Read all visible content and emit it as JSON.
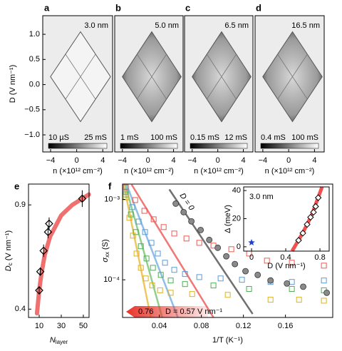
{
  "chart_data": [
    {
      "type": "heatmap",
      "panel_label": "a",
      "annotation": "3.0 nm",
      "xlabel": "n (×10¹² cm⁻²)",
      "ylabel": "D (V nm⁻¹)",
      "xlim": [
        -5.2,
        5.5
      ],
      "xticks": [
        {
          "value": -4,
          "label": "−4"
        },
        0,
        4
      ],
      "ylim": [
        -1.34,
        1.37
      ],
      "yticks": [
        {
          "value": 1,
          "label": "1.0"
        },
        0.5,
        {
          "value": 0,
          "label": "0.0"
        },
        {
          "value": -0.5,
          "label": "−0.5"
        },
        {
          "value": -1,
          "label": "−1.0"
        }
      ],
      "colorbar": [
        "10 µS",
        "25 mS"
      ]
    },
    {
      "type": "heatmap",
      "panel_label": "b",
      "annotation": "5.0 nm",
      "xlabel": "n (×10¹² cm⁻²)",
      "xlim": [
        -5.2,
        5.5
      ],
      "xticks": [
        {
          "value": -4,
          "label": "−4"
        },
        0,
        4
      ],
      "colorbar": [
        "1 mS",
        "100 mS"
      ]
    },
    {
      "type": "heatmap",
      "panel_label": "c",
      "annotation": "6.5 nm",
      "xlabel": "n (×10¹² cm⁻²)",
      "xlim": [
        -5.2,
        5.5
      ],
      "xticks": [
        {
          "value": -4,
          "label": "−4"
        },
        0,
        4
      ],
      "colorbar": [
        "0.15 mS",
        "12 mS"
      ]
    },
    {
      "type": "heatmap",
      "panel_label": "d",
      "annotation": "16.5 nm",
      "xlabel": "n (×10¹² cm⁻²)",
      "xlim": [
        -5.2,
        5.5
      ],
      "xticks": [
        {
          "value": -4,
          "label": "−4"
        },
        0,
        4
      ],
      "colorbar": [
        "0.4 mS",
        "100 mS"
      ]
    },
    {
      "type": "errorscatter",
      "panel_label": "e",
      "xlabel": "N",
      "xlabel_sub": "layer",
      "ylabel": "D",
      "ylabel_sub": "c",
      "ylabel_unit": "(V nm⁻¹)",
      "xlim": [
        0.3,
        55.2
      ],
      "xticks": [
        10,
        30,
        50
      ],
      "ylim": [
        0.36,
        1.0
      ],
      "yticks": [
        0.4,
        0.9
      ],
      "points": {
        "x": [
          10,
          11,
          14,
          18,
          19,
          49
        ],
        "y": [
          0.49,
          0.58,
          0.68,
          0.77,
          0.81,
          0.93
        ],
        "yerr": [
          0.02,
          0.02,
          0.03,
          0.03,
          0.03,
          0.04
        ],
        "color": "#000000"
      },
      "fit": {
        "x": [
          8,
          10,
          12,
          15,
          20,
          30,
          40,
          55
        ],
        "y": [
          0.38,
          0.49,
          0.57,
          0.66,
          0.75,
          0.85,
          0.9,
          0.95
        ],
        "color": "#f07070"
      }
    },
    {
      "type": "logscatter",
      "panel_label": "f",
      "xlabel": "1/T (K⁻¹)",
      "ylabel": "σ",
      "ylabel_sub": "xx",
      "ylabel_unit": "(S)",
      "xlim": [
        0.005,
        0.205
      ],
      "xticks": [
        0.04,
        0.08,
        0.12,
        0.16
      ],
      "ylim": [
        3.4e-05,
        0.00155
      ],
      "ylog": true,
      "yticks": [
        {
          "value": 0.001,
          "label": "10⁻³"
        },
        {
          "value": 0.0001,
          "label": "10⁻⁴"
        }
      ],
      "series": [
        {
          "marker": "square",
          "color": "#e85a50",
          "x": [
            0.0081,
            0.017,
            0.0258,
            0.0346,
            0.0441,
            0.0542,
            0.0658,
            0.078,
            0.0915,
            0.1085,
            0.1254,
            0.1424,
            0.1661,
            0.1966
          ],
          "values": [
            0.00141,
            0.00098,
            0.00072,
            0.000565,
            0.000452,
            0.000376,
            0.000326,
            0.000288,
            0.000266,
            0.00024,
            0.000212,
            0.000173,
            0.000163,
            0.00015
          ]
        },
        {
          "marker": "square",
          "color": "#5b9bd5",
          "x": [
            0.0081,
            0.0142,
            0.0203,
            0.0264,
            0.0325,
            0.0386,
            0.0454,
            0.0542,
            0.0644,
            0.078,
            0.0983,
            0.1186,
            0.1458,
            0.1661,
            0.1966
          ],
          "values": [
            0.00125,
            0.0008,
            0.00053,
            0.000392,
            0.000288,
            0.000212,
            0.000163,
            0.000133,
            0.000118,
            0.000108,
            0.000104,
            0.0001,
            9.4e-05,
            9.4e-05,
            9.8e-05
          ]
        },
        {
          "marker": "square",
          "color": "#4caf50",
          "x": [
            0.0081,
            0.0129,
            0.0176,
            0.0224,
            0.0278,
            0.0339,
            0.0414,
            0.0508,
            0.0644,
            0.0915,
            0.1254,
            0.1661,
            0.1966
          ],
          "values": [
            0.00115,
            0.00065,
            0.000392,
            0.000261,
            0.000184,
            0.000141,
            0.000115,
            9.8e-05,
            8.85e-05,
            8.5e-05,
            7.7e-05,
            7.7e-05,
            7.4e-05
          ]
        },
        {
          "marker": "square",
          "color": "#e0b020",
          "x": [
            0.0081,
            0.0115,
            0.0149,
            0.0183,
            0.0224,
            0.0271,
            0.0332,
            0.0407,
            0.0508,
            0.0712,
            0.1051,
            0.1458,
            0.1729,
            0.1966
          ],
          "values": [
            0.00106,
            0.00059,
            0.000354,
            0.000212,
            0.000141,
            0.000104,
            8.5e-05,
            7.4e-05,
            6.9e-05,
            6.65e-05,
            6.5e-05,
            5.65e-05,
            5.65e-05,
            5.5e-05
          ]
        },
        {
          "marker": "filled",
          "color": "#8a8a8a",
          "x": [
            0.0556,
            0.0631,
            0.0705,
            0.0793,
            0.0875,
            0.0956,
            0.1037,
            0.1119,
            0.122,
            0.1336,
            0.1458,
            0.1614,
            0.1769,
            0.1993
          ],
          "values": [
            0.000885,
            0.000693,
            0.000533,
            0.000416,
            0.000313,
            0.00025,
            0.000196,
            0.000157,
            0.000128,
            0.000115,
            9.8e-05,
            9e-05,
            8.2e-05,
            6.9e-05
          ]
        }
      ],
      "fits": [
        {
          "color": "#f07878",
          "x": [
            0.0136,
            0.0915
          ],
          "values": [
            0.00153,
            3.4e-05
          ]
        },
        {
          "color": "#8fbfe8",
          "x": [
            0.0088,
            0.0576
          ],
          "values": [
            0.00153,
            3.4e-05
          ]
        },
        {
          "color": "#8fd08f",
          "x": [
            0.0075,
            0.0427
          ],
          "values": [
            0.00153,
            3.4e-05
          ]
        },
        {
          "color": "#ecc860",
          "x": [
            0.0061,
            0.0319
          ],
          "values": [
            0.00153,
            3.4e-05
          ]
        },
        {
          "color": "#707070",
          "x": [
            0.0495,
            0.1288
          ],
          "values": [
            0.00133,
            3.76e-05
          ]
        }
      ],
      "annotations": [
        "D = 0",
        "0.76",
        "D = 0.57 V nm⁻¹"
      ]
    },
    {
      "type": "inset",
      "annotation": "3.0 nm",
      "xlabel": "D (V nm⁻¹)",
      "ylabel": "Δ (meV)",
      "xlim": [
        -0.092,
        0.908
      ],
      "xticks": [
        0,
        0.4,
        0.8
      ],
      "ylim": [
        -3.1,
        42.6
      ],
      "yticks": [
        0,
        20,
        40
      ],
      "points": {
        "x": [
          0.55,
          0.6,
          0.65,
          0.69,
          0.725,
          0.75,
          0.78
        ],
        "y": [
          4.6,
          9.7,
          15.9,
          21,
          24.6,
          28.7,
          34.9
        ],
        "color": "#000000"
      },
      "fit": {
        "x": [
          0.475,
          0.6,
          0.7,
          0.825
        ],
        "y": [
          -3,
          10,
          22,
          42.6
        ],
        "color": "#f05050"
      },
      "star": {
        "x": 0,
        "y": 3,
        "color": "#1f3fd0"
      }
    }
  ]
}
